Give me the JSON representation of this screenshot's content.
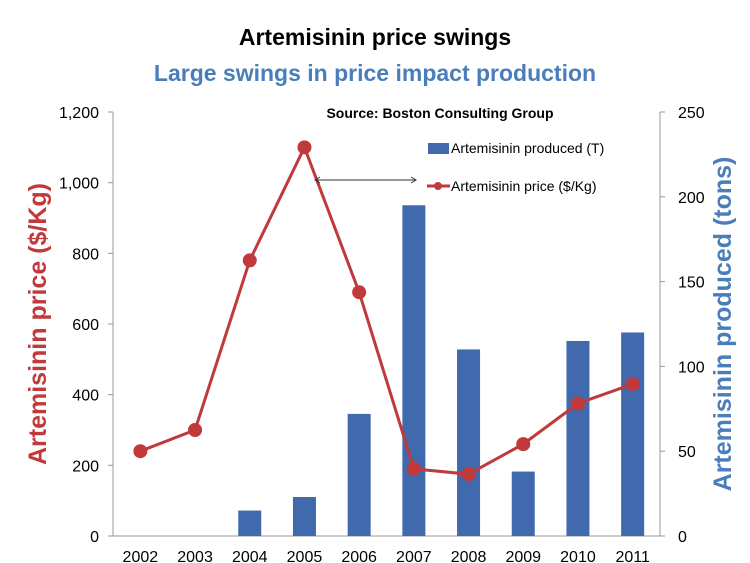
{
  "chart_data": {
    "type": "bar+line",
    "title": "Artemisinin price swings",
    "subtitle": "Large swings in price impact production",
    "annotation": "Source: Boston Consulting Group",
    "categories": [
      "2002",
      "2003",
      "2004",
      "2005",
      "2006",
      "2007",
      "2008",
      "2009",
      "2010",
      "2011"
    ],
    "series": [
      {
        "name": "Artemisinin produced (T)",
        "type": "bar",
        "axis": "right",
        "color": "#4169AE",
        "values": [
          0,
          0,
          15,
          23,
          72,
          195,
          110,
          38,
          115,
          120
        ]
      },
      {
        "name": "Artemisinin price ($/Kg)",
        "type": "line",
        "axis": "left",
        "color": "#C0393B",
        "values": [
          240,
          300,
          780,
          1100,
          690,
          190,
          175,
          260,
          375,
          430
        ]
      }
    ],
    "ylabel_left": "Artemisinin price ($/Kg)",
    "ylabel_right": "Artemisinin produced (tons)",
    "ylim_left": [
      0,
      1200
    ],
    "ylim_right": [
      0,
      250
    ],
    "yticks_left": [
      "0",
      "200",
      "400",
      "600",
      "800",
      "1,000",
      "1,200"
    ],
    "yticks_right": [
      "0",
      "50",
      "100",
      "150",
      "200",
      "250"
    ],
    "grid": false,
    "legend_position": "top-right",
    "title_color": "#000000",
    "subtitle_color": "#4A7EBB",
    "left_label_color": "#C0393B",
    "right_label_color": "#4A7EBB"
  }
}
